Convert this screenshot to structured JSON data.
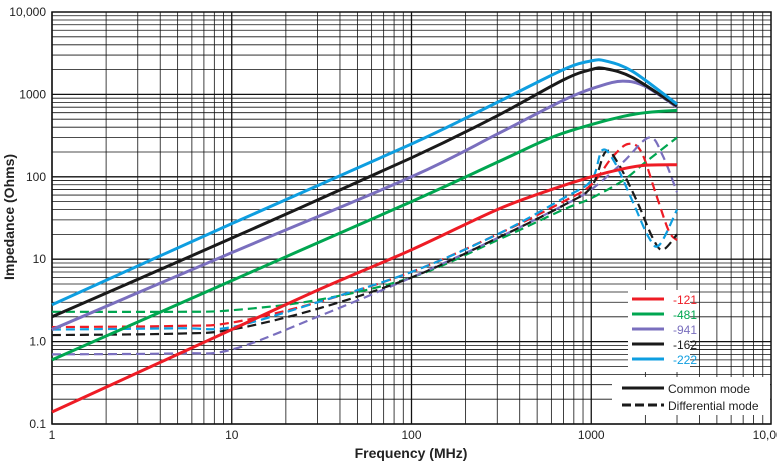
{
  "chart_data": {
    "type": "line",
    "title": "",
    "xlabel": "Frequency (MHz)",
    "ylabel": "Impedance (Ohms)",
    "xscale": "log",
    "yscale": "log",
    "xlim": [
      1,
      10000
    ],
    "ylim": [
      0.1,
      10000
    ],
    "grid": true,
    "x_ticks": [
      {
        "v": 1,
        "label": "1"
      },
      {
        "v": 10,
        "label": "10"
      },
      {
        "v": 100,
        "label": "100"
      },
      {
        "v": 1000,
        "label": "1000"
      },
      {
        "v": 10000,
        "label": "10,000"
      }
    ],
    "y_ticks": [
      {
        "v": 0.1,
        "label": "0.1"
      },
      {
        "v": 1,
        "label": "1.0"
      },
      {
        "v": 10,
        "label": "10"
      },
      {
        "v": 100,
        "label": "100"
      },
      {
        "v": 1000,
        "label": "1000"
      },
      {
        "v": 10000,
        "label": "10,000"
      }
    ],
    "legend_placement": "bottom-right",
    "mode_legend": {
      "common": "Common mode",
      "differential": "Differential mode"
    },
    "series": [
      {
        "name": "-121",
        "color": "#ee1c25",
        "mode": "common",
        "points": [
          [
            1,
            0.14
          ],
          [
            3,
            0.42
          ],
          [
            10,
            1.4
          ],
          [
            30,
            4.2
          ],
          [
            100,
            13
          ],
          [
            300,
            40
          ],
          [
            600,
            70
          ],
          [
            1000,
            100
          ],
          [
            1500,
            125
          ],
          [
            2000,
            138
          ],
          [
            3000,
            140
          ]
        ]
      },
      {
        "name": "-481",
        "color": "#00a650",
        "mode": "common",
        "points": [
          [
            1,
            0.6
          ],
          [
            10,
            5.5
          ],
          [
            100,
            50
          ],
          [
            300,
            150
          ],
          [
            600,
            300
          ],
          [
            1000,
            430
          ],
          [
            1500,
            540
          ],
          [
            2000,
            600
          ],
          [
            3000,
            640
          ]
        ]
      },
      {
        "name": "-941",
        "color": "#7a6fbe",
        "mode": "common",
        "points": [
          [
            1,
            1.4
          ],
          [
            10,
            12
          ],
          [
            100,
            100
          ],
          [
            300,
            330
          ],
          [
            700,
            850
          ],
          [
            1100,
            1250
          ],
          [
            1500,
            1450
          ],
          [
            2000,
            1250
          ],
          [
            3000,
            700
          ]
        ]
      },
      {
        "name": "-162",
        "color": "#1a1a1a",
        "mode": "common",
        "points": [
          [
            1,
            2.0
          ],
          [
            10,
            18
          ],
          [
            100,
            170
          ],
          [
            300,
            550
          ],
          [
            700,
            1500
          ],
          [
            1000,
            2000
          ],
          [
            1200,
            2050
          ],
          [
            1700,
            1600
          ],
          [
            3000,
            720
          ]
        ]
      },
      {
        "name": "-222",
        "color": "#0e9ee0",
        "mode": "common",
        "points": [
          [
            1,
            2.8
          ],
          [
            10,
            27
          ],
          [
            100,
            250
          ],
          [
            300,
            800
          ],
          [
            700,
            2000
          ],
          [
            1000,
            2550
          ],
          [
            1200,
            2550
          ],
          [
            1700,
            1900
          ],
          [
            3000,
            760
          ]
        ]
      },
      {
        "name": "-121",
        "color": "#ee1c25",
        "mode": "differential",
        "points": [
          [
            1,
            1.5
          ],
          [
            5,
            1.55
          ],
          [
            10,
            1.7
          ],
          [
            30,
            3
          ],
          [
            100,
            7
          ],
          [
            300,
            20
          ],
          [
            700,
            50
          ],
          [
            1000,
            80
          ],
          [
            1300,
            170
          ],
          [
            1600,
            250
          ],
          [
            1900,
            200
          ],
          [
            2300,
            60
          ],
          [
            2700,
            22
          ],
          [
            3000,
            17
          ]
        ]
      },
      {
        "name": "-481",
        "color": "#00a650",
        "mode": "differential",
        "points": [
          [
            1,
            2.3
          ],
          [
            5,
            2.3
          ],
          [
            10,
            2.4
          ],
          [
            30,
            3.2
          ],
          [
            100,
            6
          ],
          [
            300,
            17
          ],
          [
            700,
            40
          ],
          [
            1000,
            55
          ],
          [
            1500,
            90
          ],
          [
            2000,
            150
          ],
          [
            3000,
            300
          ]
        ]
      },
      {
        "name": "-941",
        "color": "#7a6fbe",
        "mode": "differential",
        "points": [
          [
            1,
            0.7
          ],
          [
            5,
            0.72
          ],
          [
            10,
            0.8
          ],
          [
            30,
            2
          ],
          [
            100,
            6
          ],
          [
            300,
            18
          ],
          [
            700,
            45
          ],
          [
            1000,
            70
          ],
          [
            1500,
            150
          ],
          [
            2100,
            300
          ],
          [
            2500,
            180
          ],
          [
            3000,
            65
          ]
        ]
      },
      {
        "name": "-162",
        "color": "#1a1a1a",
        "mode": "differential",
        "points": [
          [
            1,
            1.2
          ],
          [
            5,
            1.25
          ],
          [
            10,
            1.4
          ],
          [
            30,
            2.5
          ],
          [
            100,
            6
          ],
          [
            300,
            18
          ],
          [
            700,
            45
          ],
          [
            1000,
            75
          ],
          [
            1200,
            200
          ],
          [
            1400,
            150
          ],
          [
            1800,
            50
          ],
          [
            2200,
            18
          ],
          [
            2500,
            13
          ],
          [
            3000,
            20
          ]
        ]
      },
      {
        "name": "-222",
        "color": "#0e9ee0",
        "mode": "differential",
        "points": [
          [
            1,
            1.4
          ],
          [
            5,
            1.45
          ],
          [
            10,
            1.5
          ],
          [
            30,
            3
          ],
          [
            100,
            7
          ],
          [
            300,
            20
          ],
          [
            700,
            55
          ],
          [
            1000,
            90
          ],
          [
            1150,
            210
          ],
          [
            1350,
            150
          ],
          [
            1700,
            50
          ],
          [
            2100,
            18
          ],
          [
            2400,
            15
          ],
          [
            3000,
            40
          ]
        ]
      }
    ]
  }
}
